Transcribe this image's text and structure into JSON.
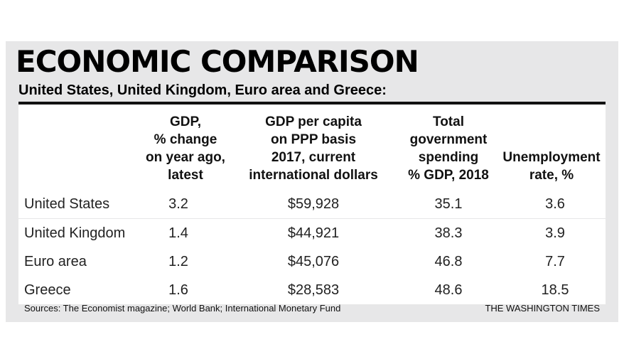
{
  "chart_data": {
    "type": "table",
    "title": "ECONOMIC COMPARISON",
    "subtitle": "United States, United Kingdom, Euro area and Greece:",
    "columns": [
      "",
      "GDP,\n% change\non year ago,\nlatest",
      "GDP per capita\non PPP basis\n2017, current\ninternational dollars",
      "Total\ngovernment\nspending\n% GDP, 2018",
      "Unemployment\nrate, %"
    ],
    "rows": [
      {
        "name": "United States",
        "cells": [
          "3.2",
          "$59,928",
          "35.1",
          "3.6"
        ]
      },
      {
        "name": "United Kingdom",
        "cells": [
          "1.4",
          "$44,921",
          "38.3",
          "3.9"
        ]
      },
      {
        "name": "Euro area",
        "cells": [
          "1.2",
          "$45,076",
          "46.8",
          "7.7"
        ]
      },
      {
        "name": "Greece",
        "cells": [
          "1.6",
          "$28,583",
          "48.6",
          "18.5"
        ]
      }
    ],
    "source": "Sources: The Economist magazine; World Bank; International Monetary Fund",
    "credit": "THE WASHINGTON TIMES"
  }
}
